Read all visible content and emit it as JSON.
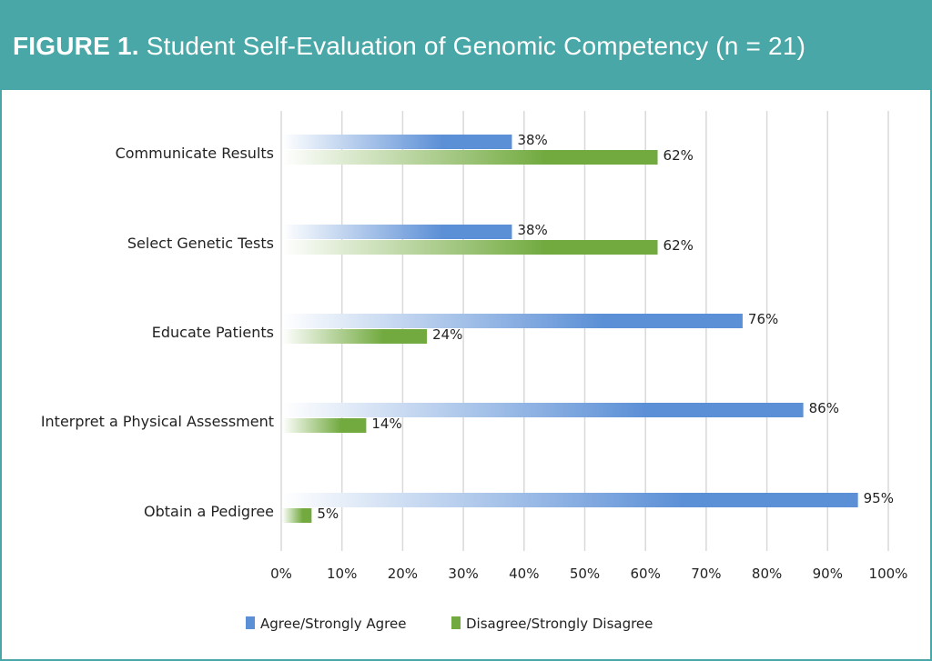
{
  "header": {
    "figure_label": "FIGURE 1.",
    "title": "Student Self-Evaluation of Genomic Competency (n = 21)"
  },
  "colors": {
    "header_bg": "#4aa7a7",
    "agree": "#5b8fd6",
    "disagree": "#72aa3f"
  },
  "chart_data": {
    "type": "bar",
    "orientation": "horizontal",
    "title": "",
    "xlabel": "",
    "ylabel": "",
    "xlim": [
      0,
      100
    ],
    "grid": true,
    "legend_position": "bottom",
    "categories": [
      "Communicate Results",
      "Select Genetic Tests",
      "Educate Patients",
      "Interpret a Physical Assessment",
      "Obtain a Pedigree"
    ],
    "series": [
      {
        "name": "Agree/Strongly Agree",
        "values": [
          38,
          38,
          76,
          86,
          95
        ],
        "labels": [
          "38%",
          "38%",
          "76%",
          "86%",
          "95%"
        ]
      },
      {
        "name": "Disagree/Strongly Disagree",
        "values": [
          62,
          62,
          24,
          14,
          5
        ],
        "labels": [
          "62%",
          "62%",
          "24%",
          "14%",
          "5%"
        ]
      }
    ],
    "x_ticks": [
      0,
      10,
      20,
      30,
      40,
      50,
      60,
      70,
      80,
      90,
      100
    ],
    "x_tick_labels": [
      "0%",
      "10%",
      "20%",
      "30%",
      "40%",
      "50%",
      "60%",
      "70%",
      "80%",
      "90%",
      "100%"
    ]
  }
}
